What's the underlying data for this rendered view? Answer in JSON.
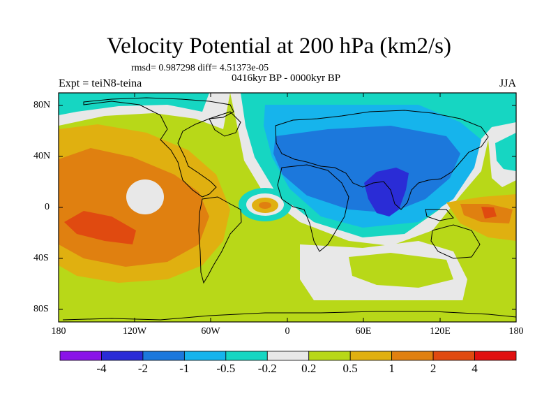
{
  "figure": {
    "title": "Velocity Potential at 200 hPa (km2/s)",
    "stats_line": "rmsd= 0.987298 diff= 4.51373e-05",
    "left_label": "Expt = teiN8-teina",
    "center_label": "0416kyr BP - 0000kyr BP",
    "right_label": "JJA"
  },
  "axes": {
    "y_ticks": [
      "80N",
      "40N",
      "0",
      "40S",
      "80S"
    ],
    "x_ticks": [
      "180",
      "120W",
      "60W",
      "0",
      "60E",
      "120E",
      "180"
    ]
  },
  "colorbar": {
    "labels": [
      "-4",
      "-2",
      "-1",
      "-0.5",
      "-0.2",
      "0.2",
      "0.5",
      "1",
      "2",
      "4"
    ],
    "colors": [
      "#8a14e8",
      "#2a2cd6",
      "#1c78dc",
      "#16b4ec",
      "#16d6c2",
      "#e8e8e8",
      "#b8d818",
      "#e0b010",
      "#e08010",
      "#e04a10",
      "#e01010"
    ]
  },
  "chart_data": {
    "type": "filled-contour-map",
    "variable": "Velocity potential at 200 hPa",
    "units": "km2/s",
    "levels": [
      -4,
      -2,
      -1,
      -0.5,
      -0.2,
      0.2,
      0.5,
      1,
      2,
      4
    ],
    "xlim": [
      -180,
      180
    ],
    "ylim": [
      -90,
      90
    ]
  }
}
